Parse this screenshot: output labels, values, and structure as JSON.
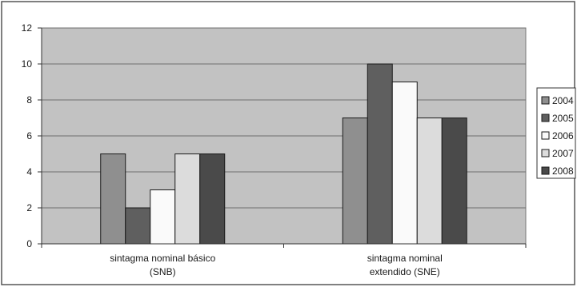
{
  "chart_data": {
    "type": "bar",
    "categories": [
      "sintagma nominal básico (SNB)",
      "sintagma nominal extendido (SNE)"
    ],
    "category_label_lines": [
      [
        "sintagma nominal básico",
        "(SNB)"
      ],
      [
        "sintagma nominal",
        "extendido (SNE)"
      ]
    ],
    "series": [
      {
        "name": "2004",
        "values": [
          5,
          7
        ],
        "color": "#8f8f8f"
      },
      {
        "name": "2005",
        "values": [
          2,
          10
        ],
        "color": "#5f5f5f"
      },
      {
        "name": "2006",
        "values": [
          3,
          9
        ],
        "color": "#fafafa"
      },
      {
        "name": "2007",
        "values": [
          5,
          7
        ],
        "color": "#dcdcdc"
      },
      {
        "name": "2008",
        "values": [
          5,
          7
        ],
        "color": "#4a4a4a"
      }
    ],
    "y_ticks": [
      "0",
      "2",
      "4",
      "6",
      "8",
      "10",
      "12"
    ],
    "ylim": [
      0,
      12
    ],
    "title": "",
    "xlabel": "",
    "ylabel": "",
    "grid": true,
    "legend_position": "right",
    "plot_background": "#c2c2c2"
  }
}
